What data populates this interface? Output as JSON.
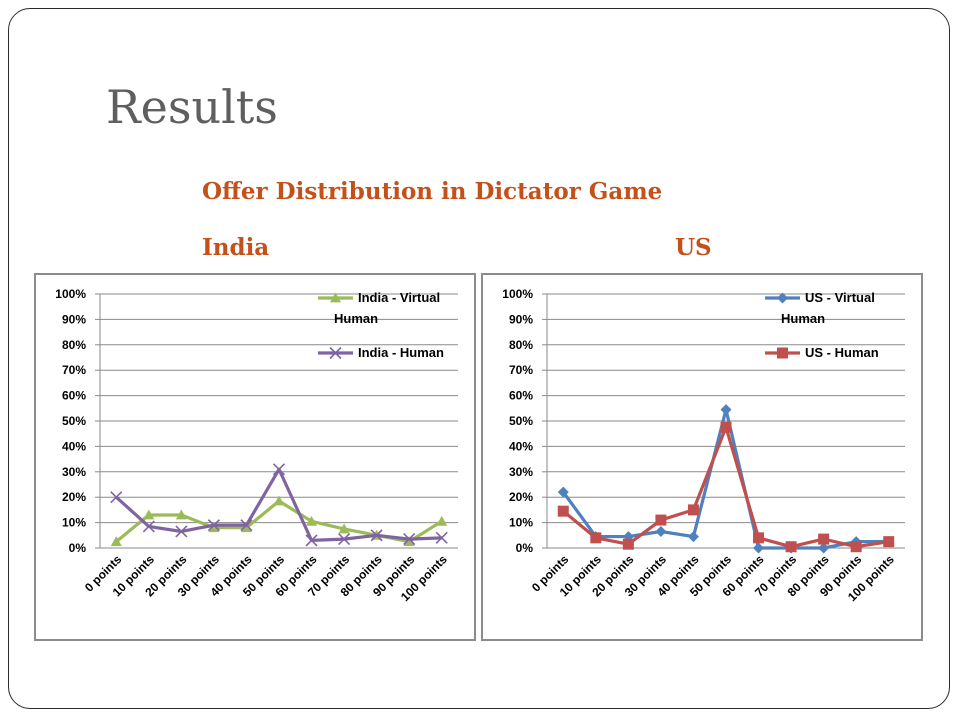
{
  "slide": {
    "title": "Results",
    "chart_heading": "Offer Distribution in Dictator Game",
    "panel_labels": [
      "India",
      "US"
    ]
  },
  "colors": {
    "heading": "#c5511a",
    "title": "#5f5f5f",
    "india_virtual": "#9bbb59",
    "india_human": "#8064a2",
    "us_virtual": "#4f81bd",
    "us_human": "#c0504d"
  },
  "chart_data": [
    {
      "type": "line",
      "title": "India",
      "categories": [
        "0 points",
        "10 points",
        "20 points",
        "30 points",
        "40 points",
        "50 points",
        "60 points",
        "70 points",
        "80 points",
        "90 points",
        "100 points"
      ],
      "ylim": [
        0,
        100
      ],
      "y_ticks": [
        "0%",
        "10%",
        "20%",
        "30%",
        "40%",
        "50%",
        "60%",
        "70%",
        "80%",
        "90%",
        "100%"
      ],
      "grid": true,
      "legend_position": "top-right",
      "series": [
        {
          "name": "India - Virtual Human",
          "legend_lines": [
            "India - Virtual",
            "Human"
          ],
          "marker": "triangle",
          "color": "#9bbb59",
          "values": [
            2.5,
            13,
            13,
            8,
            8,
            18.5,
            10.5,
            7.5,
            5,
            2.5,
            10.5
          ]
        },
        {
          "name": "India - Human",
          "legend_lines": [
            "India - Human"
          ],
          "marker": "x",
          "color": "#8064a2",
          "values": [
            20,
            8.5,
            6.5,
            9,
            9,
            31,
            3,
            3.5,
            5,
            3.5,
            4
          ]
        }
      ]
    },
    {
      "type": "line",
      "title": "US",
      "categories": [
        "0 points",
        "10 points",
        "20 points",
        "30 points",
        "40 points",
        "50 points",
        "60 points",
        "70 points",
        "80 points",
        "90 points",
        "100 points"
      ],
      "ylim": [
        0,
        100
      ],
      "y_ticks": [
        "0%",
        "10%",
        "20%",
        "30%",
        "40%",
        "50%",
        "60%",
        "70%",
        "80%",
        "90%",
        "100%"
      ],
      "grid": true,
      "legend_position": "top-right",
      "series": [
        {
          "name": "US - Virtual Human",
          "legend_lines": [
            "US - Virtual",
            "Human"
          ],
          "marker": "diamond",
          "color": "#4f81bd",
          "values": [
            22,
            4.5,
            4.5,
            6.5,
            4.5,
            54.5,
            0,
            0,
            0,
            2.5,
            2.5
          ]
        },
        {
          "name": "US - Human",
          "legend_lines": [
            "US - Human"
          ],
          "marker": "square",
          "color": "#c0504d",
          "values": [
            14.5,
            4,
            1.5,
            11,
            15,
            47.5,
            4,
            0.5,
            3.5,
            0.5,
            2.5
          ]
        }
      ]
    }
  ]
}
